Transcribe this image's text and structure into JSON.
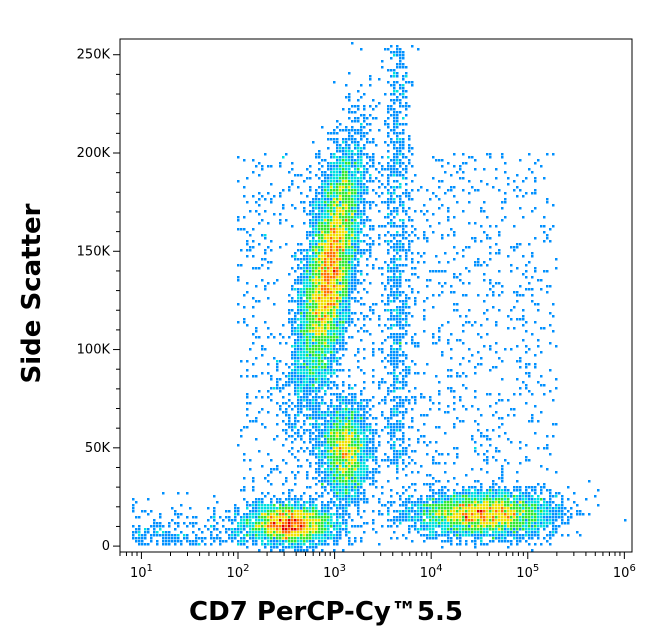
{
  "chart_data": {
    "type": "scatter",
    "style": "density-colored flow cytometry dot plot",
    "xlabel": "CD7 PerCP-Cy™5.5",
    "ylabel": "Side Scatter",
    "x_scale": "log",
    "xlim": [
      6,
      1200000
    ],
    "ylim": [
      -3000,
      258000
    ],
    "x_ticks": [
      {
        "value": 10,
        "base": "10",
        "exp": "1"
      },
      {
        "value": 100,
        "base": "10",
        "exp": "2"
      },
      {
        "value": 1000,
        "base": "10",
        "exp": "3"
      },
      {
        "value": 10000,
        "base": "10",
        "exp": "4"
      },
      {
        "value": 100000,
        "base": "10",
        "exp": "5"
      },
      {
        "value": 1000000,
        "base": "10",
        "exp": "6"
      }
    ],
    "y_ticks": [
      {
        "value": 0,
        "label": "0"
      },
      {
        "value": 50000,
        "label": "50K"
      },
      {
        "value": 100000,
        "label": "100K"
      },
      {
        "value": 150000,
        "label": "150K"
      },
      {
        "value": 200000,
        "label": "200K"
      },
      {
        "value": 250000,
        "label": "250K"
      }
    ],
    "density_colors": [
      "#0000d0",
      "#0090ff",
      "#00e0e0",
      "#30e830",
      "#f0e000",
      "#ff7000",
      "#e00000"
    ],
    "populations": [
      {
        "x_center": 900,
        "y_center": 140000,
        "log_x_sd": 0.12,
        "y_sd": 30000,
        "count": 9000
      },
      {
        "x_center": 1300,
        "y_center": 48000,
        "log_x_sd": 0.12,
        "y_sd": 12000,
        "count": 2600
      },
      {
        "x_center": 350,
        "y_center": 11000,
        "log_x_sd": 0.22,
        "y_sd": 5000,
        "count": 3500
      },
      {
        "x_center": 35000,
        "y_center": 16000,
        "log_x_sd": 0.35,
        "y_sd": 5500,
        "count": 4500
      }
    ],
    "grid": false,
    "legend": "none"
  }
}
